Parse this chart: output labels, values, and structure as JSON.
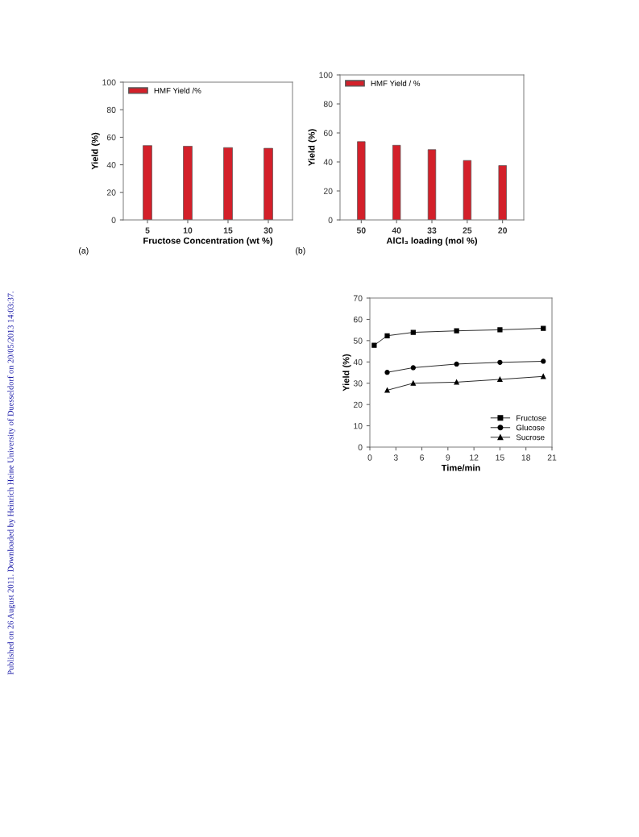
{
  "chart_data": [
    {
      "type": "bar",
      "categories": [
        "5",
        "10",
        "15",
        "30"
      ],
      "xlabel": "Fructose Concentration (wt %)",
      "ylabel": "Yield (%)",
      "ylim": [
        0,
        100
      ],
      "yticks": [
        0,
        20,
        40,
        60,
        80,
        100
      ],
      "legend": "top left",
      "annotations": [
        "(a)",
        "Published on 26 August 2011. Downloaded by Heinrich Heine University of Duesseldorf on 20/05/2013 14:03:37."
      ],
      "series": [
        {
          "name": "HMF Yield /%",
          "color": "#d3202a",
          "values": [
            54,
            53.5,
            52.5,
            52
          ]
        }
      ]
    },
    {
      "type": "bar",
      "categories": [
        "50",
        "40",
        "33",
        "25",
        "20"
      ],
      "xlabel": "AlCl₃ loading (mol %)",
      "ylabel": "Yield (%)",
      "ylim": [
        0,
        100
      ],
      "yticks": [
        0,
        20,
        40,
        60,
        80,
        100
      ],
      "legend": "top left",
      "annotations": [
        "(b)"
      ],
      "series": [
        {
          "name": "HMF Yield / %",
          "color": "#d3202a",
          "values": [
            54,
            51.5,
            48.5,
            41,
            37.5
          ]
        }
      ]
    },
    {
      "type": "line",
      "xlabel": "Time/min",
      "ylabel": "Yield (%)",
      "xlim": [
        0,
        21
      ],
      "xticks": [
        0,
        3,
        6,
        9,
        12,
        15,
        18,
        21
      ],
      "ylim": [
        0,
        70
      ],
      "yticks": [
        0,
        10,
        20,
        30,
        40,
        50,
        60,
        70
      ],
      "legend": "bottom right",
      "series": [
        {
          "name": "Fructose",
          "color": "#000000",
          "marker": "square",
          "x": [
            0.5,
            2,
            5,
            10,
            15,
            20
          ],
          "values": [
            47.8,
            52.3,
            53.9,
            54.6,
            55.1,
            55.8
          ]
        },
        {
          "name": "Glucose",
          "color": "#000000",
          "marker": "circle",
          "x": [
            2,
            5,
            10,
            15,
            20
          ],
          "values": [
            35.1,
            37.3,
            39.0,
            39.8,
            40.3
          ]
        },
        {
          "name": "Sucrose",
          "color": "#000000",
          "marker": "triangle",
          "x": [
            2,
            5,
            10,
            15,
            20
          ],
          "values": [
            26.7,
            30.0,
            30.5,
            31.8,
            33.2
          ]
        }
      ]
    }
  ]
}
